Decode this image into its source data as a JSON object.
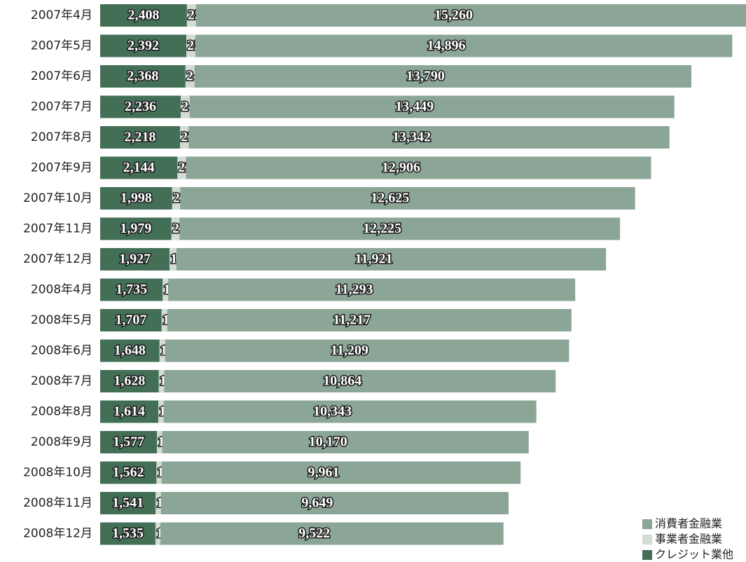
{
  "chart_data": {
    "type": "bar",
    "orientation": "horizontal",
    "stacked": true,
    "categories": [
      "2007年4月",
      "2007年5月",
      "2007年6月",
      "2007年7月",
      "2007年8月",
      "2007年9月",
      "2007年10月",
      "2007年11月",
      "2007年12月",
      "2008年4月",
      "2008年5月",
      "2008年6月",
      "2008年7月",
      "2008年8月",
      "2008年9月",
      "2008年10月",
      "2008年11月",
      "2008年12月"
    ],
    "series": [
      {
        "name": "クレジット業他",
        "color": "#436f57",
        "values": [
          2408,
          2392,
          2368,
          2236,
          2218,
          2144,
          1998,
          1979,
          1927,
          1735,
          1707,
          1648,
          1628,
          1614,
          1577,
          1562,
          1541,
          1535
        ],
        "value_labels": [
          "2,408",
          "2,392",
          "2,368",
          "2,236",
          "2,218",
          "2,144",
          "1,998",
          "1,979",
          "1,927",
          "1,735",
          "1,707",
          "1,648",
          "1,628",
          "1,614",
          "1,577",
          "1,562",
          "1,541",
          "1,535"
        ]
      },
      {
        "name": "事業者金融業",
        "color": "#d3dbd5",
        "values": [
          253,
          251,
          248,
          248,
          238,
          238,
          221,
          221,
          189,
          154,
          154,
          154,
          147,
          147,
          145,
          143,
          143,
          134
        ]
      },
      {
        "name": "消費者金融業",
        "color": "#8ba596",
        "values": [
          15260,
          14896,
          13790,
          13449,
          13342,
          12906,
          12625,
          12225,
          11921,
          11293,
          11217,
          11209,
          10864,
          10343,
          10170,
          9961,
          9649,
          9522
        ],
        "value_labels": [
          "15,260",
          "14,896",
          "13,790",
          "13,449",
          "13,342",
          "12,906",
          "12,625",
          "12,225",
          "11,921",
          "11,293",
          "11,217",
          "11,209",
          "10,864",
          "10,343",
          "10,170",
          "9,961",
          "9,649",
          "9,522"
        ]
      }
    ],
    "legend": "bottom-right"
  }
}
